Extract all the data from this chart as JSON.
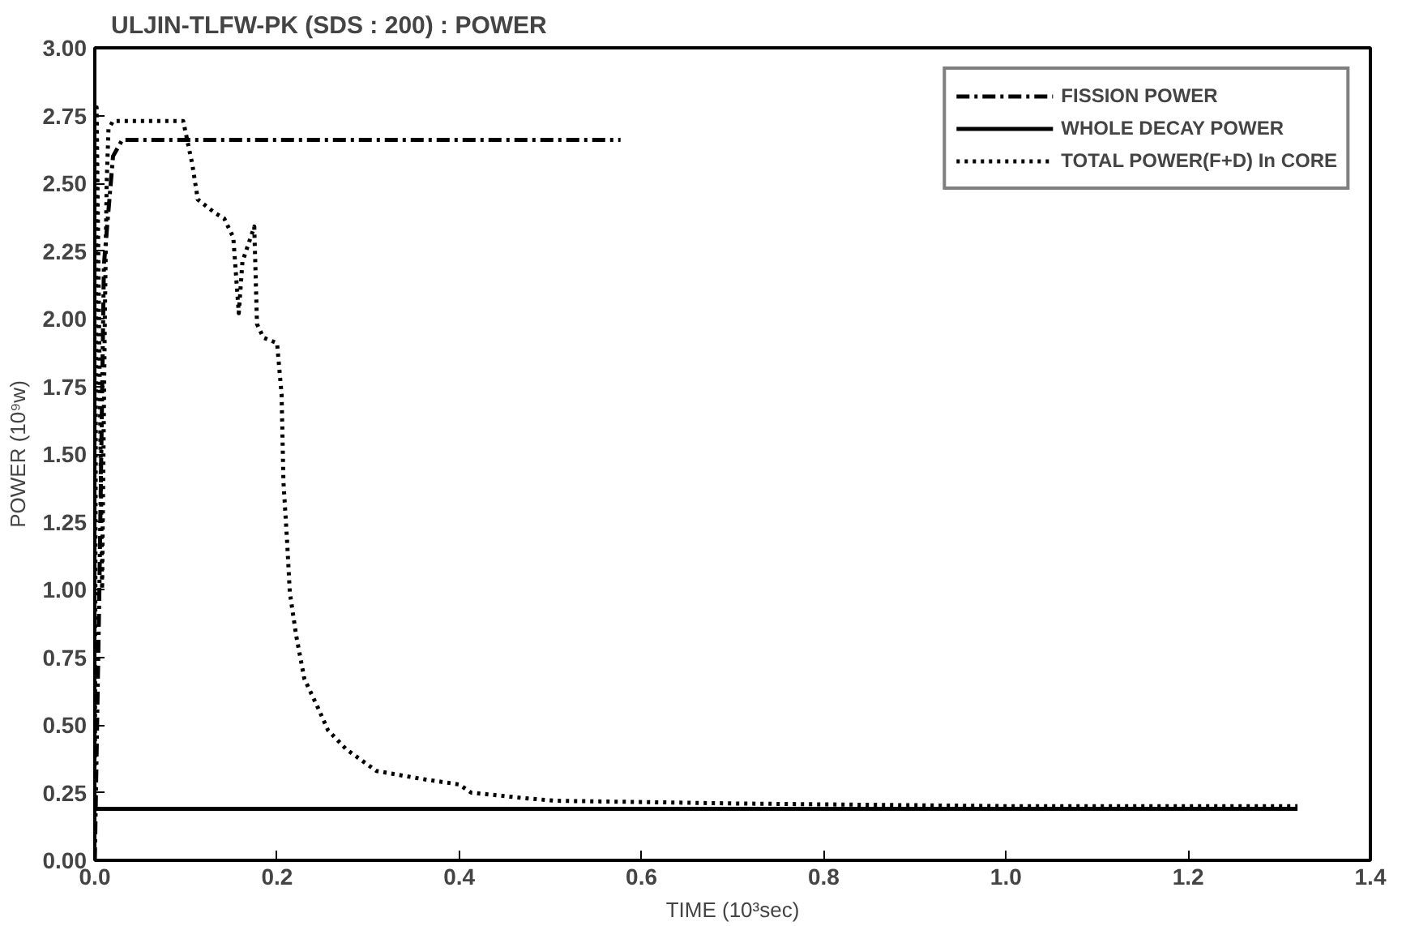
{
  "chart_data": {
    "type": "line",
    "title": "ULJIN-TLFW-PK (SDS : 200) : POWER",
    "xlabel": "TIME (10³sec)",
    "ylabel": "POWER (10⁹w)",
    "xlim": [
      0,
      1.4
    ],
    "ylim": [
      0,
      3
    ],
    "xticks": [
      {
        "value": 0,
        "label": "0.0"
      },
      {
        "value": 0.2,
        "label": "0.2"
      },
      {
        "value": 0.4,
        "label": "0.4"
      },
      {
        "value": 0.6,
        "label": "0.6"
      },
      {
        "value": 0.8,
        "label": "0.8"
      },
      {
        "value": 1.0,
        "label": "1.0"
      },
      {
        "value": 1.2,
        "label": "1.2"
      },
      {
        "value": 1.4,
        "label": "1.4"
      }
    ],
    "yticks": [
      {
        "value": 0,
        "label": "0.00"
      },
      {
        "value": 0.25,
        "label": "0.25"
      },
      {
        "value": 0.5,
        "label": "0.50"
      },
      {
        "value": 0.75,
        "label": "0.75"
      },
      {
        "value": 1.0,
        "label": "1.00"
      },
      {
        "value": 1.25,
        "label": "1.25"
      },
      {
        "value": 1.5,
        "label": "1.50"
      },
      {
        "value": 1.75,
        "label": "1.75"
      },
      {
        "value": 2.0,
        "label": "2.00"
      },
      {
        "value": 2.25,
        "label": "2.25"
      },
      {
        "value": 2.5,
        "label": "2.50"
      },
      {
        "value": 2.75,
        "label": "2.75"
      },
      {
        "value": 3.0,
        "label": "3.00"
      }
    ],
    "grid": false,
    "legend": "top right",
    "marker": "none",
    "series": [
      {
        "name": "FISSION POWER",
        "color": "#000000",
        "line_style": "dashed",
        "x": [
          0,
          0.005,
          0.01,
          0.02,
          0.03,
          0.1,
          0.3,
          0.577
        ],
        "values": [
          0,
          1.0,
          2.2,
          2.6,
          2.66,
          2.66,
          2.66,
          2.66
        ]
      },
      {
        "name": "WHOLE DECAY POWER",
        "color": "#000000",
        "line_style": "solid",
        "x": [
          0,
          1.32
        ],
        "values": [
          0.19,
          0.19
        ]
      },
      {
        "name": "TOTAL POWER(F+D) In CORE",
        "color": "#000000",
        "line_style": "dotted",
        "x": [
          0,
          0.002,
          0.008,
          0.011,
          0.013,
          0.015,
          0.02,
          0.06,
          0.097,
          0.107,
          0.113,
          0.132,
          0.142,
          0.152,
          0.158,
          0.162,
          0.175,
          0.178,
          0.185,
          0.2,
          0.205,
          0.207,
          0.211,
          0.214,
          0.221,
          0.23,
          0.244,
          0.256,
          0.276,
          0.309,
          0.36,
          0.4,
          0.413,
          0.47,
          0.505,
          0.7,
          1.0,
          1.32
        ],
        "values": [
          0.2,
          2.78,
          1.0,
          2.0,
          2.5,
          2.7,
          2.73,
          2.73,
          2.73,
          2.57,
          2.44,
          2.39,
          2.37,
          2.3,
          2.02,
          2.21,
          2.34,
          1.98,
          1.93,
          1.91,
          1.72,
          1.4,
          1.18,
          0.99,
          0.83,
          0.67,
          0.57,
          0.48,
          0.41,
          0.33,
          0.3,
          0.28,
          0.25,
          0.23,
          0.22,
          0.21,
          0.2,
          0.2
        ]
      }
    ]
  }
}
